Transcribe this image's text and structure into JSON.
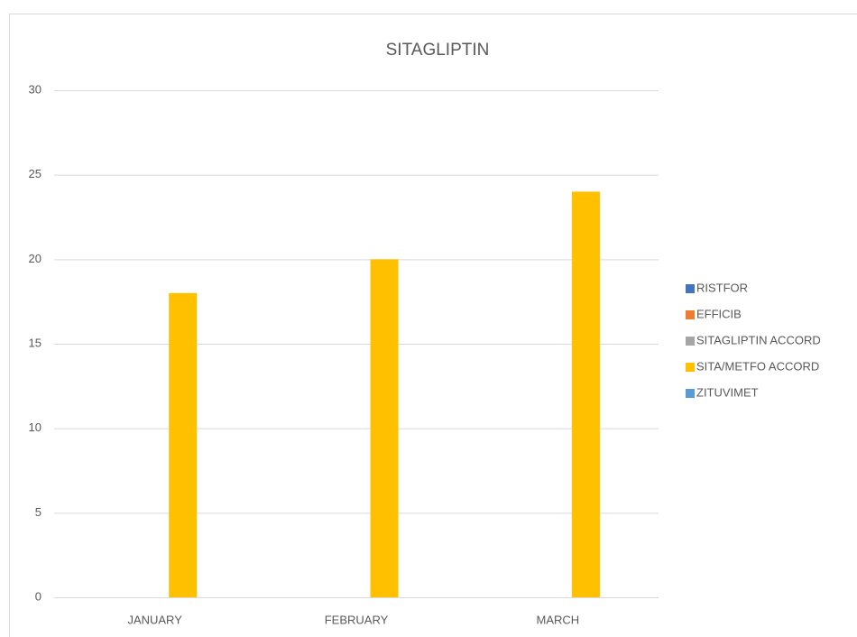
{
  "chart_data": {
    "type": "bar",
    "title": "SITAGLIPTIN",
    "categories": [
      "JANUARY",
      "FEBRUARY",
      "MARCH"
    ],
    "series": [
      {
        "name": "RISTFOR",
        "color": "#4472c4",
        "values": [
          0,
          0,
          0
        ]
      },
      {
        "name": "EFFICIB",
        "color": "#ed7d31",
        "values": [
          0,
          0,
          0
        ]
      },
      {
        "name": "SITAGLIPTIN ACCORD",
        "color": "#a5a5a5",
        "values": [
          0,
          0,
          0
        ]
      },
      {
        "name": "SITA/METFO ACCORD",
        "color": "#ffc000",
        "values": [
          18,
          20,
          24
        ]
      },
      {
        "name": "ZITUVIMET",
        "color": "#5b9bd5",
        "values": [
          0,
          0,
          0
        ]
      }
    ],
    "ylim": [
      0,
      30
    ],
    "yticks": [
      0,
      5,
      10,
      15,
      20,
      25,
      30
    ],
    "grid": true,
    "legend": "right"
  }
}
